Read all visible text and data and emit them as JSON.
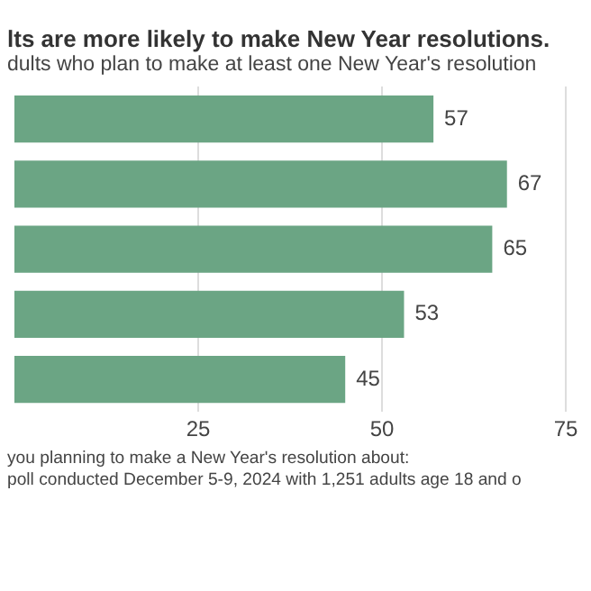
{
  "chart_data": {
    "type": "bar",
    "orientation": "horizontal",
    "title": "lts are more likely to make New Year resolutions.",
    "subtitle": "dults who plan to make at least one New Year's resolution",
    "categories": [
      null,
      null,
      null,
      null,
      null
    ],
    "values": [
      57,
      67,
      65,
      53,
      45
    ],
    "color": "#6ba584",
    "xlim": [
      0,
      75
    ],
    "xticks": [
      25,
      50,
      75
    ],
    "grid": "x",
    "data_labels": true,
    "annotations": [
      "you planning to make a New Year's resolution about:",
      "poll conducted December 5-9, 2024 with 1,251 adults age 18 and o"
    ]
  }
}
